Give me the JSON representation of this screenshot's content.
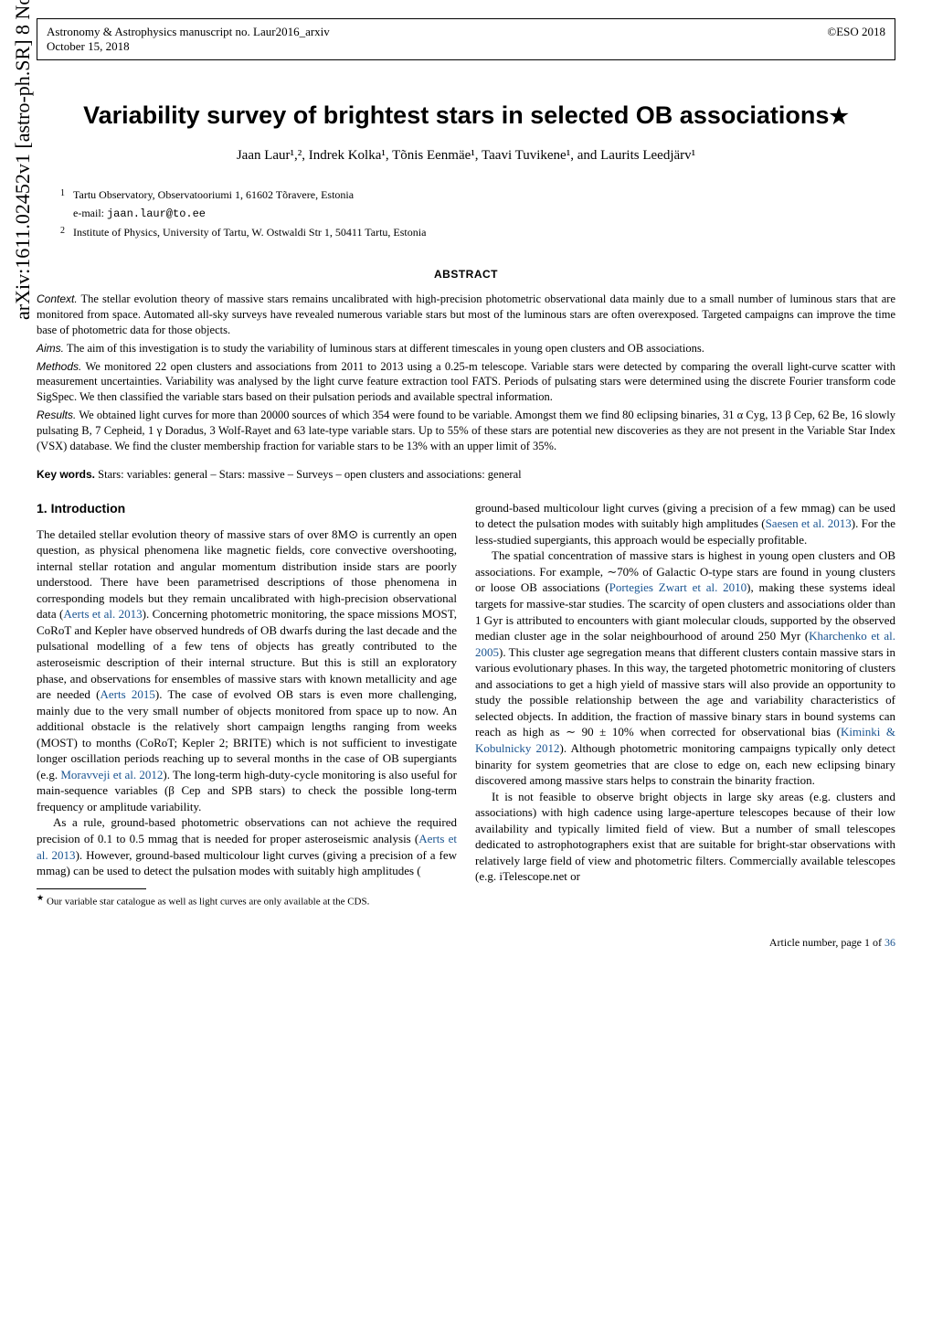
{
  "header": {
    "left_line1": "Astronomy & Astrophysics manuscript no. Laur2016_arxiv",
    "left_line2": "October 15, 2018",
    "right": "©ESO 2018"
  },
  "arxiv_banner": "arXiv:1611.02452v1  [astro-ph.SR]  8 Nov 2016",
  "title": "Variability survey of brightest stars in selected OB associations",
  "title_star": "★",
  "authors": "Jaan Laur¹,², Indrek Kolka¹, Tõnis Eenmäe¹, Taavi Tuvikene¹, and Laurits Leedjärv¹",
  "affiliations": [
    {
      "num": "1",
      "text": "Tartu Observatory, Observatooriumi 1, 61602 Tõravere, Estonia"
    },
    {
      "num": "",
      "text": "e-mail: jaan.laur@to.ee"
    },
    {
      "num": "2",
      "text": "Institute of Physics, University of Tartu, W. Ostwaldi Str 1, 50411 Tartu, Estonia"
    }
  ],
  "email": "jaan.laur@to.ee",
  "abstract": {
    "heading": "ABSTRACT",
    "context_label": "Context.",
    "context": "The stellar evolution theory of massive stars remains uncalibrated with high-precision photometric observational data mainly due to a small number of luminous stars that are monitored from space. Automated all-sky surveys have revealed numerous variable stars but most of the luminous stars are often overexposed. Targeted campaigns can improve the time base of photometric data for those objects.",
    "aims_label": "Aims.",
    "aims": "The aim of this investigation is to study the variability of luminous stars at different timescales in young open clusters and OB associations.",
    "methods_label": "Methods.",
    "methods": "We monitored 22 open clusters and associations from 2011 to 2013 using a 0.25-m telescope. Variable stars were detected by comparing the overall light-curve scatter with measurement uncertainties. Variability was analysed by the light curve feature extraction tool FATS. Periods of pulsating stars were determined using the discrete Fourier transform code SigSpec. We then classified the variable stars based on their pulsation periods and available spectral information.",
    "results_label": "Results.",
    "results": "We obtained light curves for more than 20000 sources of which 354 were found to be variable. Amongst them we find 80 eclipsing binaries, 31 α Cyg, 13 β Cep, 62 Be, 16 slowly pulsating B, 7 Cepheid, 1 γ Doradus, 3 Wolf-Rayet and 63 late-type variable stars. Up to 55% of these stars are potential new discoveries as they are not present in the Variable Star Index (VSX) database. We find the cluster membership fraction for variable stars to be 13% with an upper limit of 35%."
  },
  "keywords": {
    "label": "Key words.",
    "text": "Stars: variables: general – Stars: massive – Surveys – open clusters and associations: general"
  },
  "section1": {
    "heading": "1. Introduction",
    "para1_a": "The detailed stellar evolution theory of massive stars of over 8M⊙ is currently an open question, as physical phenomena like magnetic fields, core convective overshooting, internal stellar rotation and angular momentum distribution inside stars are poorly understood. There have been parametrised descriptions of those phenomena in corresponding models but they remain uncalibrated with high-precision observational data (",
    "cite1": "Aerts et al. 2013",
    "para1_b": "). Concerning photometric monitoring, the space missions MOST, CoRoT and Kepler have observed hundreds of OB dwarfs during the last decade and the pulsational modelling of a few tens of objects has greatly contributed to the asteroseismic description of their internal structure. But this is still an exploratory phase, and observations for ensembles of massive stars with known metallicity and age are needed (",
    "cite2": "Aerts 2015",
    "para1_c": "). The case of evolved OB stars is even more challenging, mainly due to the very small number of objects monitored from space up to now. An additional obstacle is the relatively short campaign lengths ranging from weeks (MOST) to months (CoRoT; Kepler 2; BRITE) which is not sufficient to investigate longer oscillation periods reaching up to several months in the case of OB supergiants (e.g. ",
    "cite3": "Moravveji et al. 2012",
    "para1_d": "). The long-term high-duty-cycle monitoring is also useful for main-sequence variables (β Cep and SPB stars) to check the possible long-term frequency or amplitude variability.",
    "para2_a": "As a rule, ground-based photometric observations can not achieve the required precision of 0.1 to 0.5 mmag that is needed for proper asteroseismic analysis (",
    "cite4": "Aerts et al. 2013",
    "para2_b": "). However, ground-based multicolour light curves (giving a precision of a few mmag) can be used to detect the pulsation modes with suitably high amplitudes (",
    "cite5": "Saesen et al. 2013",
    "para2_c": "). For the less-studied supergiants, this approach would be especially profitable.",
    "para3_a": "The spatial concentration of massive stars is highest in young open clusters and OB associations. For example, ∼70% of Galactic O-type stars are found in young clusters or loose OB associations (",
    "cite6": "Portegies Zwart et al. 2010",
    "para3_b": "), making these systems ideal targets for massive-star studies. The scarcity of open clusters and associations older than 1 Gyr is attributed to encounters with giant molecular clouds, supported by the observed median cluster age in the solar neighbourhood of around 250 Myr (",
    "cite7": "Kharchenko et al. 2005",
    "para3_c": "). This cluster age segregation means that different clusters contain massive stars in various evolutionary phases. In this way, the targeted photometric monitoring of clusters and associations to get a high yield of massive stars will also provide an opportunity to study the possible relationship between the age and variability characteristics of selected objects. In addition, the fraction of massive binary stars in bound systems can reach as high as ∼ 90 ± 10% when corrected for observational bias (",
    "cite8": "Kiminki & Kobulnicky 2012",
    "para3_d": "). Although photometric monitoring campaigns typically only detect binarity for system geometries that are close to edge on, each new eclipsing binary discovered among massive stars helps to constrain the binarity fraction.",
    "para4": "It is not feasible to observe bright objects in large sky areas (e.g. clusters and associations) with high cadence using large-aperture telescopes because of their low availability and typically limited field of view. But a number of small telescopes dedicated to astrophotographers exist that are suitable for bright-star observations with relatively large field of view and photometric filters. Commercially available telescopes (e.g. iTelescope.net or"
  },
  "footnote": {
    "star": "★",
    "text": "Our variable star catalogue as well as light curves are only available at the CDS."
  },
  "page_number": {
    "prefix": "Article number, page 1 of ",
    "total": "36"
  },
  "colors": {
    "cite": "#1a5490",
    "text": "#000000",
    "background": "#ffffff"
  }
}
